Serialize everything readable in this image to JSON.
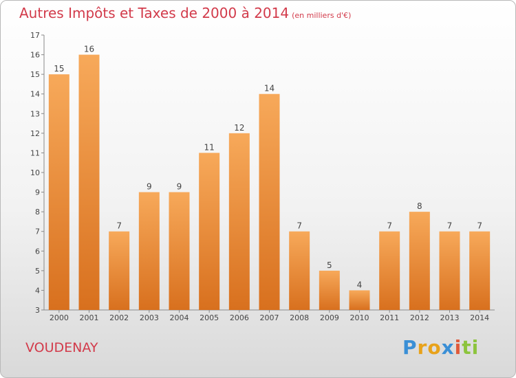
{
  "header": {
    "title": "Autres Impôts et Taxes de 2000 à 2014",
    "unit": "(en milliers d'€)"
  },
  "commune": "VOUDENAY",
  "logo": {
    "letters": [
      "P",
      "r",
      "o",
      "x",
      "i",
      "t",
      "i"
    ],
    "colors": [
      "#3a8fd6",
      "#e8a21a",
      "#e8a21a",
      "#3a8fd6",
      "#e05a3a",
      "#8cc43d",
      "#8cc43d"
    ]
  },
  "chart_data": {
    "type": "bar",
    "title": "Autres Impôts et Taxes de 2000 à 2014",
    "subtitle": "(en milliers d'€)",
    "categories": [
      "2000",
      "2001",
      "2002",
      "2003",
      "2004",
      "2005",
      "2006",
      "2007",
      "2008",
      "2009",
      "2010",
      "2011",
      "2012",
      "2013",
      "2014"
    ],
    "values": [
      15,
      16,
      7,
      9,
      9,
      11,
      12,
      14,
      7,
      5,
      4,
      7,
      8,
      7,
      7
    ],
    "ylim": [
      3,
      17
    ],
    "yticks": [
      3,
      4,
      5,
      6,
      7,
      8,
      9,
      10,
      11,
      12,
      13,
      14,
      15,
      16,
      17
    ],
    "grid": false,
    "bar_color": "#f0923a"
  }
}
